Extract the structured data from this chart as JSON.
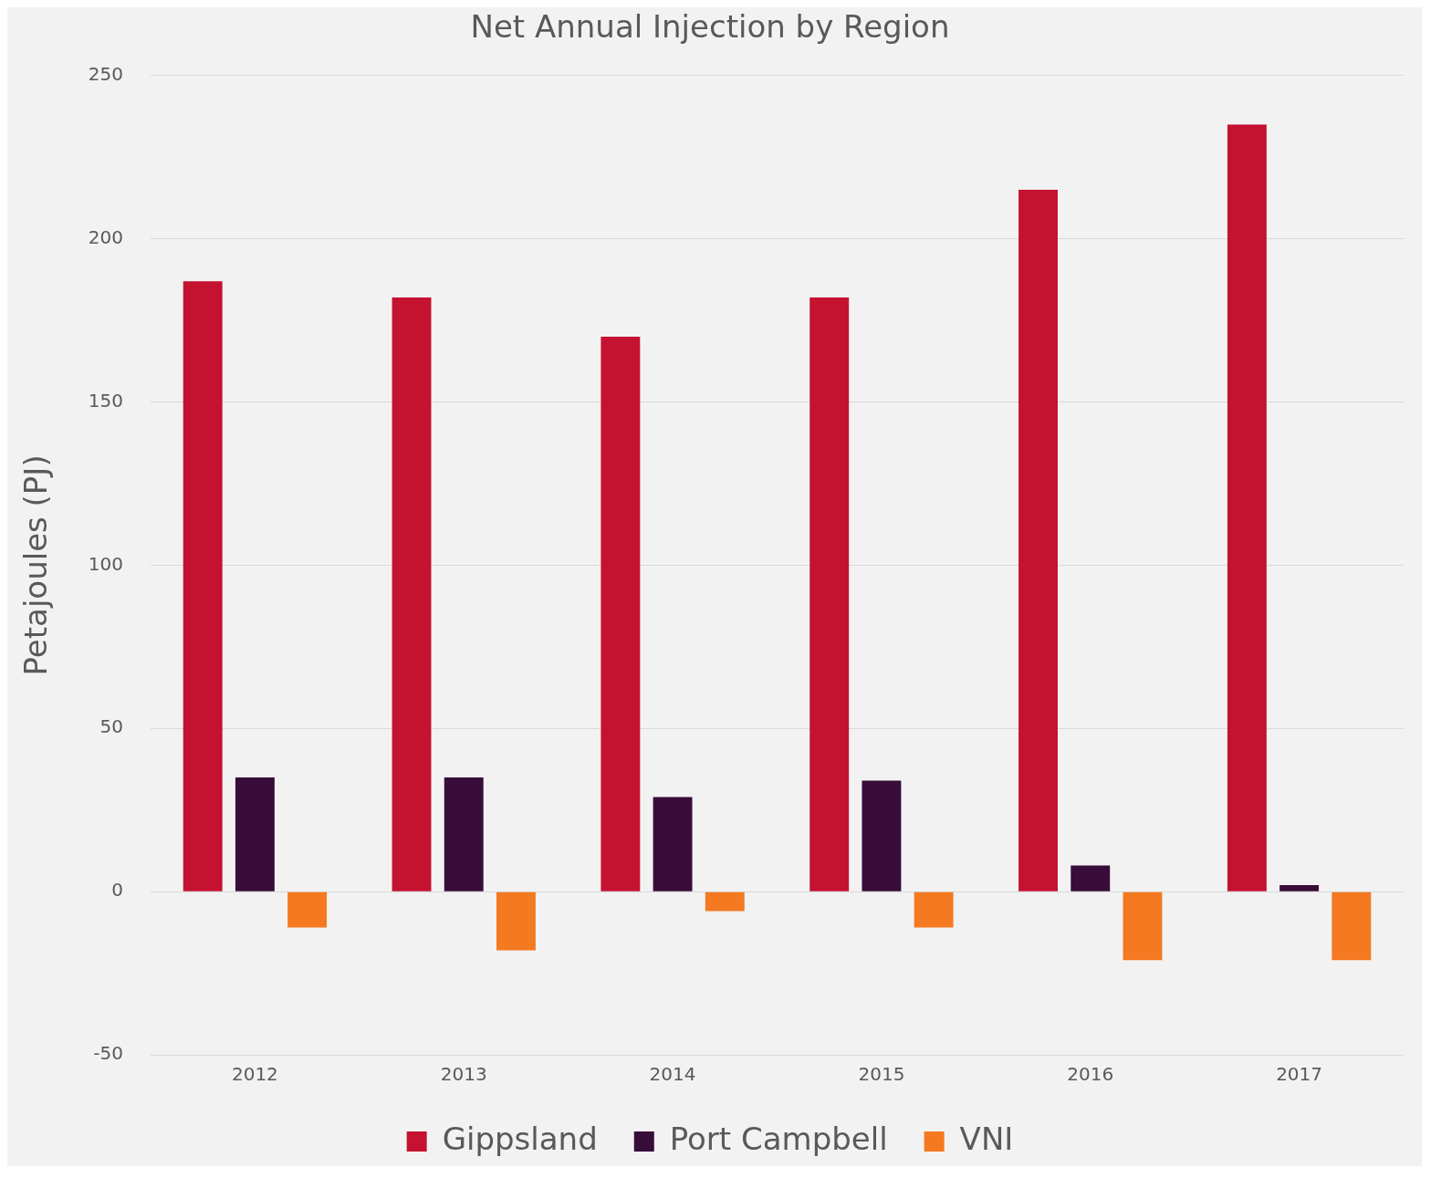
{
  "chart_data": {
    "type": "bar",
    "title": "Net Annual Injection by Region",
    "ylabel": "Petajoules (PJ)",
    "categories": [
      "2012",
      "2013",
      "2014",
      "2015",
      "2016",
      "2017"
    ],
    "series": [
      {
        "name": "Gippsland",
        "color": "#c41230",
        "values": [
          187,
          182,
          170,
          182,
          215,
          235
        ]
      },
      {
        "name": "Port Campbell",
        "color": "#380d3a",
        "values": [
          35,
          35,
          29,
          34,
          8,
          2
        ]
      },
      {
        "name": "VNI",
        "color": "#f47920",
        "values": [
          -11,
          -18,
          -6,
          -11,
          -21,
          -21
        ]
      }
    ],
    "ylim": [
      -50,
      250
    ],
    "yticks": [
      -50,
      0,
      50,
      100,
      150,
      200,
      250
    ],
    "grid": "y",
    "legend": "bottom"
  }
}
